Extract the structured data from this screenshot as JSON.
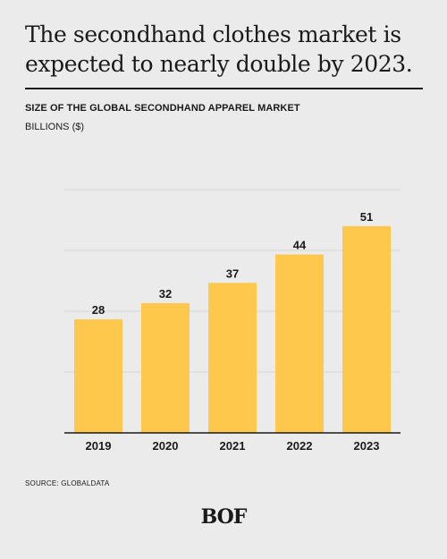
{
  "headline": "The secondhand clothes market is expected to nearly double by 2023.",
  "footer": {
    "source": "SOURCE: GLOBALDATA",
    "logo": "BOF"
  },
  "colors": {
    "bar": "#fec84c",
    "background": "#ebebeb",
    "text": "#1a1a1a",
    "grid": "#d6d6d6"
  },
  "chart_data": {
    "type": "bar",
    "title": "SIZE OF THE GLOBAL SECONDHAND APPAREL MARKET",
    "ylabel": "BILLIONS ($)",
    "xlabel": "",
    "categories": [
      "2019",
      "2020",
      "2021",
      "2022",
      "2023"
    ],
    "values": [
      28,
      32,
      37,
      44,
      51
    ],
    "ylim": [
      0,
      60
    ],
    "grid": true,
    "y_tick_labels_shown": false,
    "data_labels": true
  }
}
